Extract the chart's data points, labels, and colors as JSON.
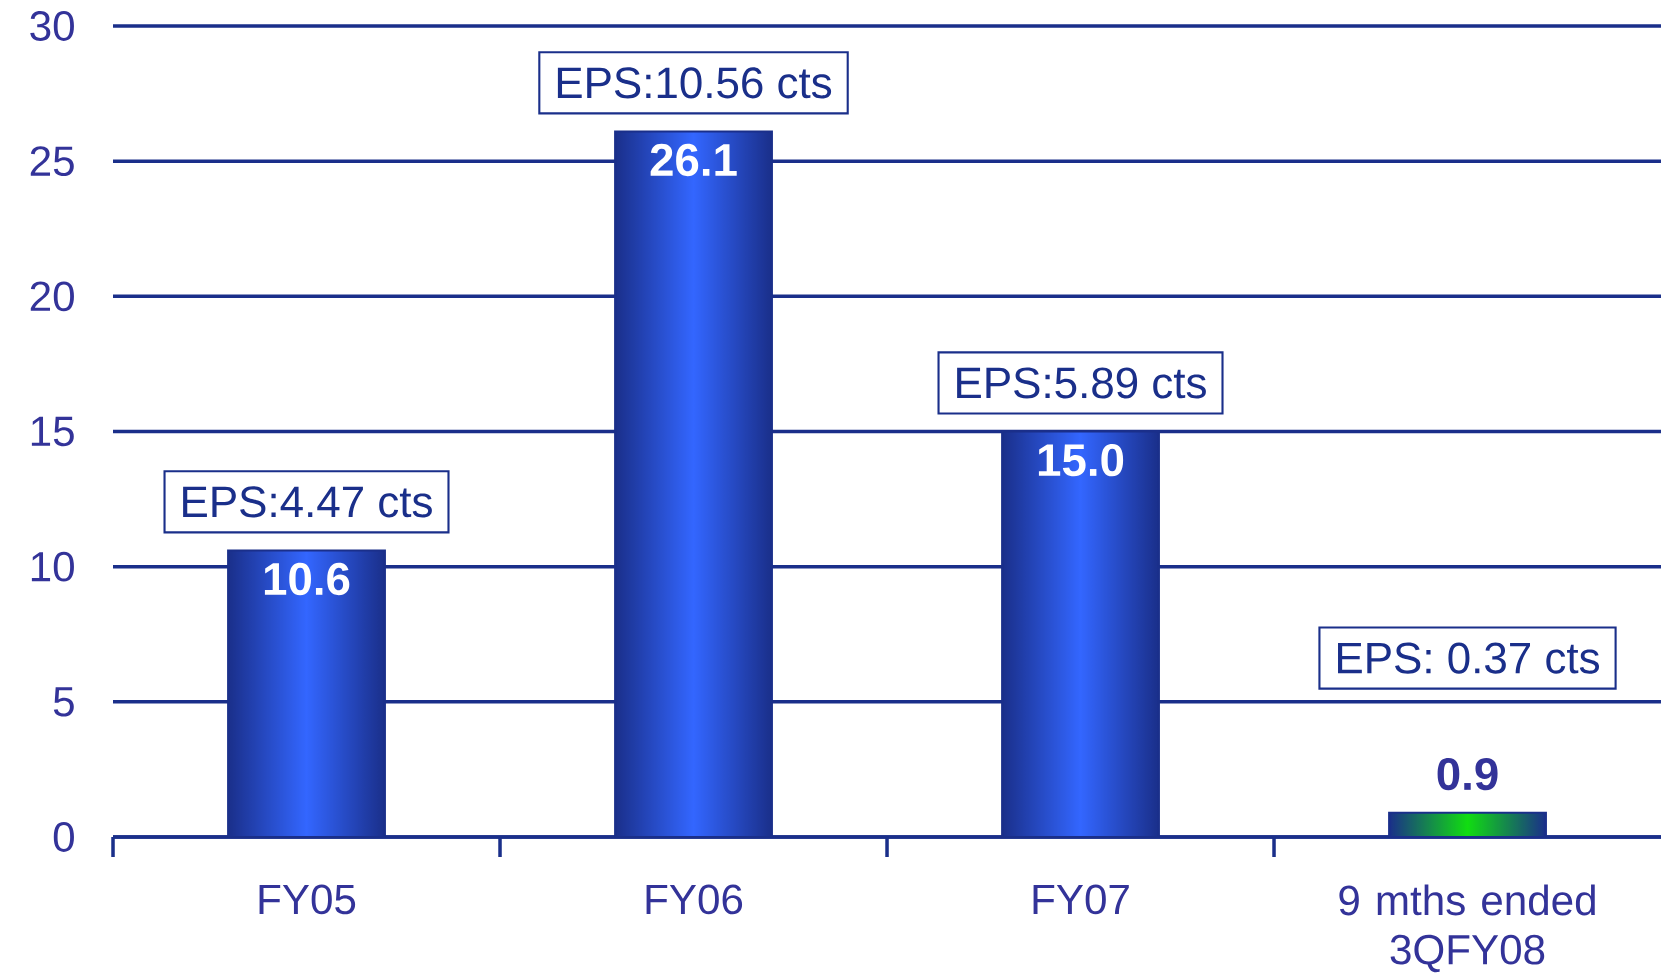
{
  "chart_data": {
    "type": "bar",
    "categories": [
      "FY05",
      "FY06",
      "FY07",
      "9 mths ended 3QFY08"
    ],
    "values": [
      10.6,
      26.1,
      15.0,
      0.9
    ],
    "value_labels": [
      "10.6",
      "26.1",
      "15.0",
      "0.9"
    ],
    "colors": [
      "#3366ff",
      "#3366ff",
      "#3366ff",
      "#11dd11"
    ],
    "ylim": [
      0,
      30
    ],
    "yticks": [
      0,
      5,
      10,
      15,
      20,
      25,
      30
    ],
    "grid": "y",
    "annotations": [
      "EPS:4.47 cts",
      "EPS:10.56 cts",
      "EPS:5.89 cts",
      "EPS: 0.37 cts"
    ]
  }
}
